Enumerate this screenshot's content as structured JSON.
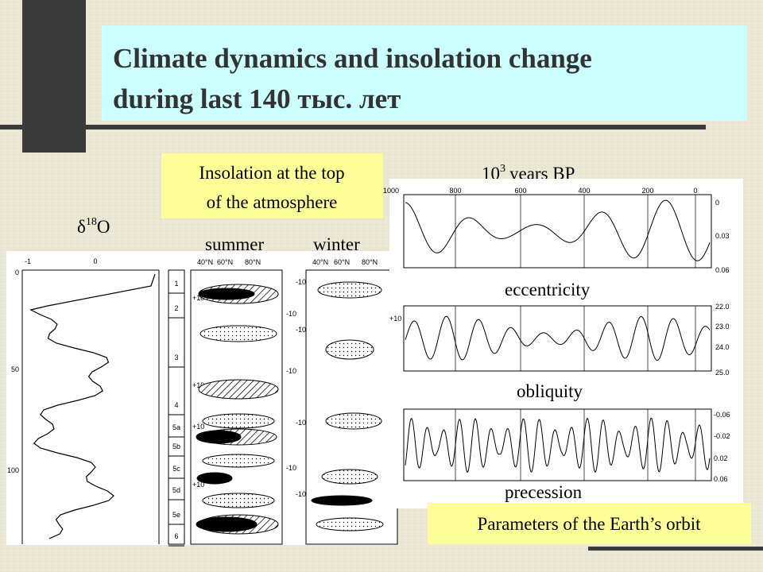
{
  "title": {
    "line1": "Climate dynamics and insolation change",
    "line2": "during last 140 тыс. лет"
  },
  "labels": {
    "insolation": [
      "Insolation at the top",
      "of the atmosphere"
    ],
    "years_base": "10",
    "years_exp": "3",
    "years_unit": "years BP",
    "delta": "δ",
    "delta_exp": "18",
    "delta_o": "O",
    "summer": "summer",
    "winter": "winter",
    "eccentricity": "eccentricity",
    "obliquity": "obliquity",
    "precession": "precession",
    "orbit": "Parameters of the Earth’s orbit"
  },
  "left_figure": {
    "top_ticks": [
      "-1",
      "0"
    ],
    "depth_ticks": [
      "0",
      "50",
      "100"
    ],
    "stages": [
      "1",
      "2",
      "3",
      "4",
      "5a",
      "5b",
      "5c",
      "5d",
      "5e",
      "6"
    ],
    "lat": [
      "40°N",
      "60°N",
      "80°N"
    ],
    "contours": [
      "+10",
      "-10"
    ]
  },
  "right_figure": {
    "x_ticks": [
      "1000",
      "800",
      "600",
      "400",
      "200",
      "0"
    ],
    "ecc_ticks": [
      "0",
      "0.03",
      "0.06"
    ],
    "obl_ticks": [
      "22.0",
      "23.0",
      "24.0",
      "25.0"
    ],
    "prec_ticks": [
      "-0.06",
      "-0.02",
      "0.02",
      "0.06"
    ]
  }
}
